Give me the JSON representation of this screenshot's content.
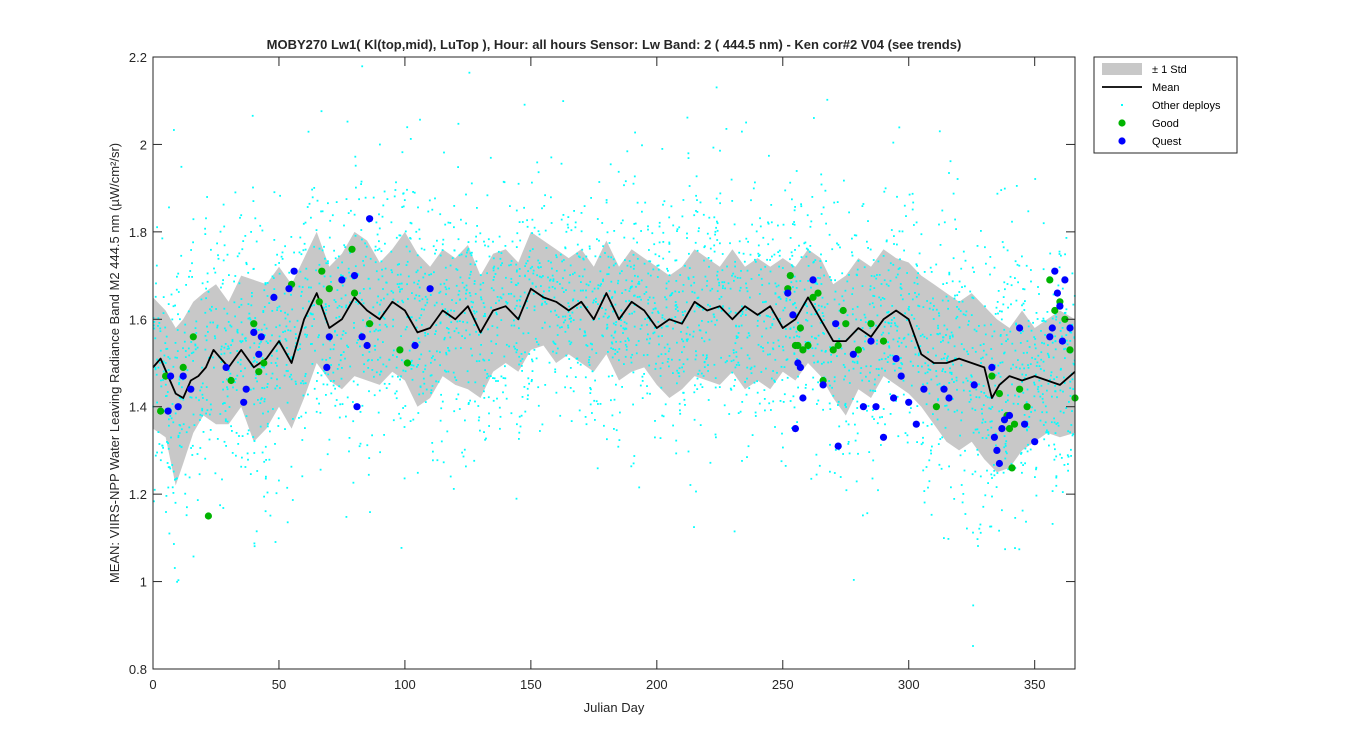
{
  "chart_data": {
    "type": "scatter",
    "title": "MOBY270   Lw1( Kl(top,mid), LuTop ),   Hour: all hours  Sensor: Lw Band: 2 ( 444.5 nm)  - Ken cor#2 V04 (see trends)",
    "xlabel": "Julian Day",
    "ylabel": "MEAN: VIIRS-NPP Water Leaving Radiance Band M2 444.5 nm (µW/cm²/sr)",
    "xlim": [
      0,
      366
    ],
    "ylim": [
      0.8,
      2.2
    ],
    "xticks": [
      0,
      50,
      100,
      150,
      200,
      250,
      300,
      350
    ],
    "yticks": [
      0.8,
      1,
      1.2,
      1.4,
      1.6,
      1.8,
      2,
      2.2
    ],
    "xtick_labels": [
      "0",
      "50",
      "100",
      "150",
      "200",
      "250",
      "300",
      "350"
    ],
    "ytick_labels": [
      "0.8",
      "1",
      "1.2",
      "1.4",
      "1.6",
      "1.8",
      "2",
      "2.2"
    ],
    "grid": false,
    "legend_position": "outside-top-right",
    "legend": [
      {
        "key": "std",
        "label": "± 1 Std"
      },
      {
        "key": "mean",
        "label": "Mean"
      },
      {
        "key": "other",
        "label": "Other deploys"
      },
      {
        "key": "good",
        "label": "Good"
      },
      {
        "key": "quest",
        "label": "Quest"
      }
    ],
    "colors": {
      "std_band": "#c8c8c8",
      "mean_line": "#000000",
      "other_deploys": "#00ffff",
      "good": "#00b400",
      "quest": "#0000ff"
    },
    "mean": {
      "x": [
        0,
        3,
        6,
        9,
        12,
        15,
        18,
        21,
        24,
        27,
        30,
        35,
        40,
        45,
        50,
        55,
        60,
        65,
        70,
        75,
        80,
        85,
        90,
        95,
        100,
        105,
        110,
        115,
        120,
        125,
        130,
        135,
        140,
        145,
        150,
        155,
        160,
        165,
        170,
        175,
        180,
        185,
        190,
        195,
        200,
        205,
        210,
        215,
        220,
        225,
        230,
        235,
        240,
        245,
        250,
        255,
        260,
        265,
        270,
        275,
        280,
        285,
        290,
        295,
        300,
        305,
        310,
        315,
        320,
        325,
        330,
        333,
        336,
        340,
        345,
        350,
        355,
        360,
        366
      ],
      "y": [
        1.49,
        1.51,
        1.47,
        1.43,
        1.42,
        1.46,
        1.47,
        1.49,
        1.53,
        1.51,
        1.49,
        1.53,
        1.49,
        1.51,
        1.55,
        1.5,
        1.6,
        1.66,
        1.58,
        1.6,
        1.65,
        1.62,
        1.6,
        1.64,
        1.62,
        1.57,
        1.58,
        1.62,
        1.6,
        1.63,
        1.57,
        1.62,
        1.63,
        1.6,
        1.67,
        1.65,
        1.64,
        1.62,
        1.64,
        1.6,
        1.66,
        1.6,
        1.64,
        1.62,
        1.58,
        1.6,
        1.59,
        1.64,
        1.62,
        1.63,
        1.6,
        1.63,
        1.61,
        1.63,
        1.58,
        1.6,
        1.65,
        1.6,
        1.55,
        1.55,
        1.58,
        1.56,
        1.6,
        1.62,
        1.6,
        1.52,
        1.5,
        1.5,
        1.51,
        1.5,
        1.49,
        1.42,
        1.45,
        1.47,
        1.46,
        1.47,
        1.46,
        1.45,
        1.48
      ]
    },
    "std_band": {
      "x": [
        0,
        5,
        9,
        12,
        16,
        20,
        25,
        30,
        35,
        40,
        45,
        50,
        55,
        60,
        65,
        70,
        75,
        80,
        85,
        90,
        95,
        100,
        105,
        110,
        115,
        120,
        125,
        130,
        135,
        140,
        145,
        150,
        155,
        160,
        165,
        170,
        175,
        180,
        185,
        190,
        195,
        200,
        205,
        210,
        215,
        220,
        225,
        230,
        235,
        240,
        245,
        250,
        255,
        260,
        265,
        270,
        275,
        280,
        285,
        290,
        295,
        300,
        305,
        310,
        315,
        320,
        325,
        330,
        335,
        340,
        345,
        350,
        355,
        360,
        366
      ],
      "upper": [
        1.65,
        1.62,
        1.58,
        1.6,
        1.64,
        1.66,
        1.68,
        1.64,
        1.7,
        1.69,
        1.68,
        1.72,
        1.68,
        1.74,
        1.8,
        1.72,
        1.75,
        1.8,
        1.78,
        1.73,
        1.76,
        1.8,
        1.75,
        1.72,
        1.76,
        1.74,
        1.77,
        1.7,
        1.75,
        1.76,
        1.73,
        1.8,
        1.78,
        1.76,
        1.74,
        1.76,
        1.72,
        1.78,
        1.72,
        1.76,
        1.74,
        1.72,
        1.7,
        1.72,
        1.76,
        1.74,
        1.72,
        1.76,
        1.72,
        1.74,
        1.72,
        1.74,
        1.72,
        1.76,
        1.74,
        1.68,
        1.7,
        1.74,
        1.72,
        1.76,
        1.74,
        1.73,
        1.7,
        1.68,
        1.66,
        1.64,
        1.66,
        1.63,
        1.6,
        1.58,
        1.62,
        1.58,
        1.6,
        1.62,
        1.6
      ],
      "lower": [
        1.35,
        1.33,
        1.22,
        1.27,
        1.34,
        1.38,
        1.36,
        1.36,
        1.4,
        1.32,
        1.35,
        1.4,
        1.35,
        1.42,
        1.5,
        1.46,
        1.44,
        1.47,
        1.46,
        1.45,
        1.48,
        1.46,
        1.4,
        1.42,
        1.47,
        1.45,
        1.44,
        1.42,
        1.48,
        1.5,
        1.48,
        1.53,
        1.54,
        1.5,
        1.52,
        1.5,
        1.48,
        1.52,
        1.46,
        1.48,
        1.49,
        1.45,
        1.42,
        1.44,
        1.47,
        1.46,
        1.45,
        1.48,
        1.44,
        1.46,
        1.44,
        1.48,
        1.46,
        1.5,
        1.47,
        1.42,
        1.38,
        1.44,
        1.42,
        1.47,
        1.45,
        1.43,
        1.4,
        1.36,
        1.32,
        1.3,
        1.32,
        1.28,
        1.25,
        1.26,
        1.3,
        1.32,
        1.34,
        1.33,
        1.34
      ]
    },
    "good": [
      [
        3,
        1.39
      ],
      [
        5,
        1.47
      ],
      [
        12,
        1.49
      ],
      [
        16,
        1.56
      ],
      [
        22,
        1.15
      ],
      [
        31,
        1.46
      ],
      [
        40,
        1.59
      ],
      [
        42,
        1.48
      ],
      [
        44,
        1.5
      ],
      [
        55,
        1.68
      ],
      [
        66,
        1.64
      ],
      [
        67,
        1.71
      ],
      [
        70,
        1.67
      ],
      [
        79,
        1.76
      ],
      [
        80,
        1.66
      ],
      [
        86,
        1.59
      ],
      [
        98,
        1.53
      ],
      [
        101,
        1.5
      ],
      [
        252,
        1.67
      ],
      [
        253,
        1.7
      ],
      [
        255,
        1.54
      ],
      [
        256,
        1.54
      ],
      [
        257,
        1.58
      ],
      [
        258,
        1.53
      ],
      [
        260,
        1.54
      ],
      [
        262,
        1.65
      ],
      [
        264,
        1.66
      ],
      [
        266,
        1.46
      ],
      [
        270,
        1.53
      ],
      [
        272,
        1.54
      ],
      [
        274,
        1.62
      ],
      [
        275,
        1.59
      ],
      [
        280,
        1.53
      ],
      [
        285,
        1.59
      ],
      [
        290,
        1.55
      ],
      [
        311,
        1.4
      ],
      [
        333,
        1.47
      ],
      [
        336,
        1.43
      ],
      [
        339,
        1.38
      ],
      [
        340,
        1.35
      ],
      [
        341,
        1.26
      ],
      [
        342,
        1.36
      ],
      [
        344,
        1.44
      ],
      [
        347,
        1.4
      ],
      [
        356,
        1.69
      ],
      [
        358,
        1.62
      ],
      [
        360,
        1.64
      ],
      [
        362,
        1.6
      ],
      [
        364,
        1.53
      ],
      [
        366,
        1.42
      ]
    ],
    "quest": [
      [
        6,
        1.39
      ],
      [
        7,
        1.47
      ],
      [
        10,
        1.4
      ],
      [
        12,
        1.47
      ],
      [
        15,
        1.44
      ],
      [
        29,
        1.49
      ],
      [
        36,
        1.41
      ],
      [
        37,
        1.44
      ],
      [
        40,
        1.57
      ],
      [
        42,
        1.52
      ],
      [
        43,
        1.56
      ],
      [
        48,
        1.65
      ],
      [
        54,
        1.67
      ],
      [
        56,
        1.71
      ],
      [
        69,
        1.49
      ],
      [
        70,
        1.56
      ],
      [
        75,
        1.69
      ],
      [
        80,
        1.7
      ],
      [
        81,
        1.4
      ],
      [
        83,
        1.56
      ],
      [
        85,
        1.54
      ],
      [
        86,
        1.83
      ],
      [
        104,
        1.54
      ],
      [
        110,
        1.67
      ],
      [
        252,
        1.66
      ],
      [
        254,
        1.61
      ],
      [
        255,
        1.35
      ],
      [
        256,
        1.5
      ],
      [
        257,
        1.49
      ],
      [
        258,
        1.42
      ],
      [
        262,
        1.69
      ],
      [
        266,
        1.45
      ],
      [
        271,
        1.59
      ],
      [
        272,
        1.31
      ],
      [
        278,
        1.52
      ],
      [
        282,
        1.4
      ],
      [
        285,
        1.55
      ],
      [
        287,
        1.4
      ],
      [
        290,
        1.33
      ],
      [
        294,
        1.42
      ],
      [
        295,
        1.51
      ],
      [
        297,
        1.47
      ],
      [
        300,
        1.41
      ],
      [
        303,
        1.36
      ],
      [
        306,
        1.44
      ],
      [
        314,
        1.44
      ],
      [
        316,
        1.42
      ],
      [
        326,
        1.45
      ],
      [
        333,
        1.49
      ],
      [
        334,
        1.33
      ],
      [
        335,
        1.3
      ],
      [
        336,
        1.27
      ],
      [
        337,
        1.35
      ],
      [
        338,
        1.37
      ],
      [
        340,
        1.38
      ],
      [
        344,
        1.58
      ],
      [
        346,
        1.36
      ],
      [
        350,
        1.32
      ],
      [
        356,
        1.56
      ],
      [
        357,
        1.58
      ],
      [
        358,
        1.71
      ],
      [
        359,
        1.66
      ],
      [
        360,
        1.63
      ],
      [
        361,
        1.55
      ],
      [
        362,
        1.69
      ],
      [
        364,
        1.58
      ]
    ],
    "other_deploys_count": 3500
  }
}
